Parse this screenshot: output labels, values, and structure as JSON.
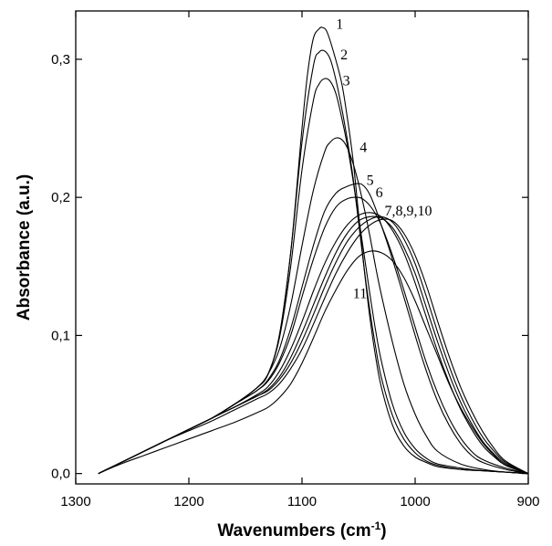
{
  "chart_data": {
    "type": "line",
    "title": "",
    "xlabel": "Wavenumbers (cm",
    "xlabel_sup": "-1",
    "xlabel_suffix": ")",
    "ylabel": "Absorbance (a.u.)",
    "xlim": [
      1300,
      900
    ],
    "ylim": [
      -0.0075,
      0.335
    ],
    "x_reversed": true,
    "grid": false,
    "x_ticks": [
      1300,
      1200,
      1100,
      1000,
      900
    ],
    "x_tick_labels": [
      "1300",
      "1200",
      "1100",
      "1000",
      "900"
    ],
    "y_ticks": [
      0.0,
      0.1,
      0.2,
      0.3
    ],
    "y_tick_labels": [
      "0,0",
      "0,1",
      "0,2",
      "0,3"
    ],
    "curve_labels": [
      {
        "text": "1",
        "x": 1070,
        "y": 0.322
      },
      {
        "text": "2",
        "x": 1066,
        "y": 0.3
      },
      {
        "text": "3",
        "x": 1064,
        "y": 0.281
      },
      {
        "text": "4",
        "x": 1049,
        "y": 0.233
      },
      {
        "text": "5",
        "x": 1043,
        "y": 0.209
      },
      {
        "text": "6",
        "x": 1035,
        "y": 0.2
      },
      {
        "text": "7,8,9,10",
        "x": 1027,
        "y": 0.187
      },
      {
        "text": "11",
        "x": 1055,
        "y": 0.127
      }
    ],
    "series": [
      {
        "x": [
          1280,
          1260,
          1240,
          1220,
          1200,
          1180,
          1160,
          1140,
          1130,
          1120,
          1110,
          1100,
          1095,
          1090,
          1085,
          1082,
          1078,
          1072,
          1065,
          1060,
          1055,
          1050,
          1045,
          1040,
          1035,
          1030,
          1020,
          1010,
          1000,
          990,
          980,
          960,
          940,
          920,
          900
        ],
        "y": [
          0.0,
          0.008,
          0.016,
          0.024,
          0.032,
          0.04,
          0.05,
          0.062,
          0.072,
          0.1,
          0.16,
          0.25,
          0.29,
          0.315,
          0.322,
          0.323,
          0.32,
          0.305,
          0.283,
          0.258,
          0.228,
          0.188,
          0.148,
          0.113,
          0.085,
          0.063,
          0.035,
          0.02,
          0.012,
          0.008,
          0.005,
          0.003,
          0.002,
          0.001,
          0.0
        ]
      },
      {
        "x": [
          1280,
          1260,
          1240,
          1220,
          1200,
          1180,
          1160,
          1140,
          1130,
          1120,
          1110,
          1100,
          1090,
          1085,
          1080,
          1075,
          1070,
          1065,
          1060,
          1055,
          1050,
          1045,
          1040,
          1035,
          1030,
          1020,
          1010,
          1000,
          990,
          980,
          960,
          940,
          920,
          900
        ],
        "y": [
          0.0,
          0.008,
          0.016,
          0.024,
          0.032,
          0.04,
          0.05,
          0.062,
          0.072,
          0.1,
          0.16,
          0.24,
          0.295,
          0.305,
          0.306,
          0.3,
          0.285,
          0.265,
          0.242,
          0.215,
          0.182,
          0.148,
          0.118,
          0.092,
          0.07,
          0.042,
          0.025,
          0.015,
          0.009,
          0.006,
          0.003,
          0.002,
          0.001,
          0.0
        ]
      },
      {
        "x": [
          1280,
          1260,
          1240,
          1220,
          1200,
          1180,
          1160,
          1140,
          1130,
          1120,
          1110,
          1100,
          1090,
          1085,
          1080,
          1075,
          1070,
          1065,
          1060,
          1055,
          1050,
          1045,
          1040,
          1035,
          1030,
          1020,
          1010,
          1000,
          990,
          980,
          960,
          940,
          920,
          900
        ],
        "y": [
          0.0,
          0.008,
          0.016,
          0.024,
          0.032,
          0.04,
          0.05,
          0.062,
          0.072,
          0.098,
          0.15,
          0.22,
          0.27,
          0.282,
          0.286,
          0.284,
          0.275,
          0.258,
          0.238,
          0.213,
          0.186,
          0.158,
          0.13,
          0.104,
          0.082,
          0.05,
          0.03,
          0.018,
          0.011,
          0.007,
          0.004,
          0.002,
          0.001,
          0.0
        ]
      },
      {
        "x": [
          1280,
          1260,
          1240,
          1220,
          1200,
          1180,
          1160,
          1140,
          1130,
          1120,
          1110,
          1100,
          1090,
          1080,
          1075,
          1070,
          1065,
          1060,
          1055,
          1050,
          1045,
          1040,
          1035,
          1030,
          1020,
          1010,
          1000,
          990,
          980,
          960,
          940,
          920,
          900
        ],
        "y": [
          0.0,
          0.008,
          0.016,
          0.024,
          0.032,
          0.04,
          0.05,
          0.062,
          0.072,
          0.09,
          0.122,
          0.165,
          0.205,
          0.233,
          0.24,
          0.243,
          0.242,
          0.236,
          0.225,
          0.21,
          0.192,
          0.172,
          0.15,
          0.13,
          0.095,
          0.065,
          0.043,
          0.027,
          0.016,
          0.007,
          0.003,
          0.001,
          0.0
        ]
      },
      {
        "x": [
          1280,
          1260,
          1240,
          1220,
          1200,
          1180,
          1160,
          1140,
          1130,
          1120,
          1110,
          1100,
          1090,
          1080,
          1070,
          1060,
          1050,
          1045,
          1040,
          1035,
          1030,
          1025,
          1020,
          1010,
          1000,
          990,
          980,
          970,
          960,
          950,
          940,
          920,
          900
        ],
        "y": [
          0.0,
          0.008,
          0.016,
          0.024,
          0.032,
          0.04,
          0.05,
          0.06,
          0.068,
          0.082,
          0.105,
          0.135,
          0.165,
          0.19,
          0.203,
          0.208,
          0.21,
          0.208,
          0.202,
          0.192,
          0.18,
          0.168,
          0.155,
          0.128,
          0.1,
          0.074,
          0.052,
          0.035,
          0.022,
          0.013,
          0.008,
          0.003,
          0.0
        ]
      },
      {
        "x": [
          1280,
          1260,
          1240,
          1220,
          1200,
          1180,
          1160,
          1140,
          1130,
          1120,
          1110,
          1100,
          1090,
          1080,
          1070,
          1060,
          1050,
          1045,
          1040,
          1035,
          1030,
          1020,
          1010,
          1000,
          990,
          980,
          970,
          960,
          950,
          940,
          920,
          900
        ],
        "y": [
          0.0,
          0.008,
          0.016,
          0.024,
          0.032,
          0.04,
          0.05,
          0.06,
          0.067,
          0.08,
          0.1,
          0.128,
          0.155,
          0.178,
          0.193,
          0.199,
          0.2,
          0.198,
          0.194,
          0.188,
          0.18,
          0.158,
          0.133,
          0.106,
          0.08,
          0.058,
          0.04,
          0.026,
          0.016,
          0.01,
          0.004,
          0.0
        ]
      },
      {
        "x": [
          1280,
          1260,
          1240,
          1220,
          1200,
          1180,
          1160,
          1140,
          1130,
          1120,
          1110,
          1100,
          1090,
          1080,
          1070,
          1060,
          1050,
          1040,
          1030,
          1020,
          1010,
          1000,
          990,
          980,
          970,
          960,
          950,
          940,
          930,
          920,
          900
        ],
        "y": [
          0.0,
          0.008,
          0.016,
          0.024,
          0.032,
          0.04,
          0.048,
          0.057,
          0.063,
          0.074,
          0.09,
          0.11,
          0.132,
          0.152,
          0.168,
          0.18,
          0.187,
          0.189,
          0.186,
          0.176,
          0.16,
          0.138,
          0.113,
          0.088,
          0.066,
          0.047,
          0.032,
          0.02,
          0.012,
          0.006,
          0.0
        ]
      },
      {
        "x": [
          1280,
          1260,
          1240,
          1220,
          1200,
          1180,
          1160,
          1140,
          1130,
          1120,
          1110,
          1100,
          1090,
          1080,
          1070,
          1060,
          1050,
          1040,
          1030,
          1020,
          1010,
          1000,
          990,
          980,
          970,
          960,
          950,
          940,
          930,
          920,
          900
        ],
        "y": [
          0.0,
          0.008,
          0.016,
          0.024,
          0.032,
          0.04,
          0.048,
          0.056,
          0.061,
          0.07,
          0.084,
          0.102,
          0.122,
          0.142,
          0.16,
          0.174,
          0.183,
          0.186,
          0.185,
          0.178,
          0.164,
          0.145,
          0.12,
          0.095,
          0.072,
          0.052,
          0.036,
          0.023,
          0.014,
          0.007,
          0.0
        ]
      },
      {
        "x": [
          1280,
          1260,
          1240,
          1220,
          1200,
          1180,
          1160,
          1140,
          1130,
          1120,
          1110,
          1100,
          1090,
          1080,
          1070,
          1060,
          1050,
          1040,
          1030,
          1020,
          1010,
          1000,
          990,
          980,
          970,
          960,
          950,
          940,
          930,
          920,
          900
        ],
        "y": [
          0.0,
          0.008,
          0.016,
          0.024,
          0.032,
          0.04,
          0.048,
          0.056,
          0.06,
          0.068,
          0.08,
          0.096,
          0.115,
          0.135,
          0.153,
          0.168,
          0.178,
          0.184,
          0.186,
          0.182,
          0.17,
          0.152,
          0.128,
          0.102,
          0.078,
          0.057,
          0.04,
          0.026,
          0.016,
          0.008,
          0.0
        ]
      },
      {
        "x": [
          1280,
          1260,
          1240,
          1220,
          1200,
          1180,
          1160,
          1140,
          1130,
          1120,
          1110,
          1100,
          1090,
          1080,
          1070,
          1060,
          1050,
          1040,
          1030,
          1020,
          1010,
          1000,
          990,
          980,
          970,
          960,
          950,
          940,
          930,
          920,
          900
        ],
        "y": [
          0.0,
          0.008,
          0.016,
          0.024,
          0.031,
          0.038,
          0.046,
          0.054,
          0.058,
          0.065,
          0.076,
          0.09,
          0.108,
          0.127,
          0.145,
          0.16,
          0.172,
          0.18,
          0.184,
          0.183,
          0.174,
          0.158,
          0.136,
          0.11,
          0.085,
          0.063,
          0.045,
          0.03,
          0.018,
          0.009,
          0.0
        ]
      },
      {
        "x": [
          1280,
          1260,
          1240,
          1220,
          1200,
          1180,
          1160,
          1140,
          1130,
          1120,
          1110,
          1100,
          1090,
          1080,
          1070,
          1060,
          1050,
          1040,
          1030,
          1020,
          1010,
          1000,
          990,
          980,
          970,
          960,
          950,
          940,
          930,
          920,
          900
        ],
        "y": [
          0.0,
          0.007,
          0.013,
          0.019,
          0.025,
          0.031,
          0.037,
          0.044,
          0.048,
          0.055,
          0.065,
          0.08,
          0.098,
          0.117,
          0.133,
          0.147,
          0.157,
          0.161,
          0.16,
          0.154,
          0.142,
          0.125,
          0.105,
          0.085,
          0.065,
          0.048,
          0.034,
          0.022,
          0.013,
          0.006,
          0.0
        ]
      }
    ]
  }
}
